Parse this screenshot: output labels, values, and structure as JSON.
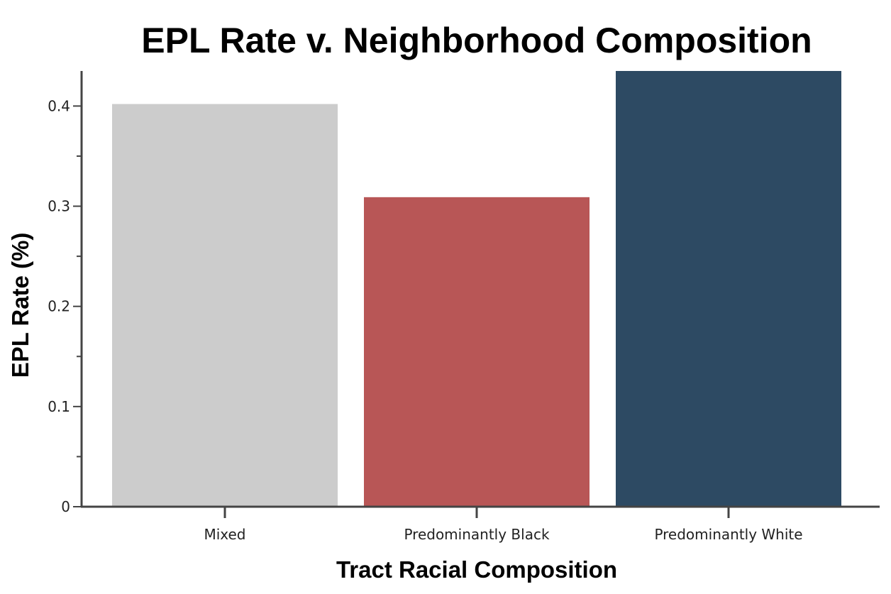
{
  "chart_data": {
    "type": "bar",
    "title": "EPL Rate v. Neighborhood Composition",
    "xlabel": "Tract Racial Composition",
    "ylabel": "EPL Rate (%)",
    "categories": [
      "Mixed",
      "Predominantly Black",
      "Predominantly White"
    ],
    "values": [
      0.402,
      0.309,
      0.435
    ],
    "colors": [
      "#cccccc",
      "#b85656",
      "#2d4a63"
    ],
    "ylim": [
      0,
      0.435
    ],
    "yticks": [
      0,
      0.1,
      0.2,
      0.3,
      0.4
    ],
    "ytick_labels": [
      "0",
      "0.1",
      "0.2",
      "0.3",
      "0.4"
    ],
    "minor_yticks": [
      0.05,
      0.15,
      0.25,
      0.35
    ],
    "grid": false,
    "legend": "none"
  }
}
